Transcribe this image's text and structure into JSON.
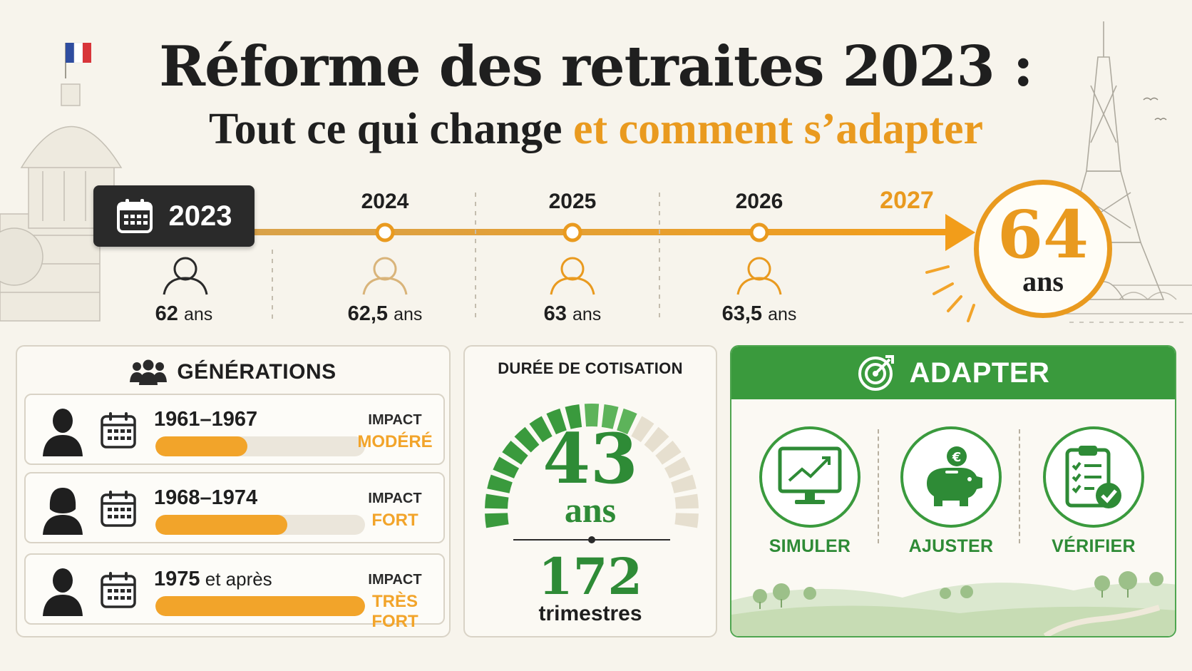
{
  "title": {
    "main": "Réforme des retraites 2023 :",
    "sub_plain": "Tout ce qui change ",
    "sub_accent": "et comment s’adapter"
  },
  "colors": {
    "accent_orange": "#e99a1f",
    "green": "#3a9a3d",
    "dark": "#2a2a2a"
  },
  "timeline": {
    "start_year": "2023",
    "start_age_value": "62",
    "target_year": "2027",
    "target_age": "64",
    "target_unit": "ans",
    "steps": [
      {
        "year": "2024",
        "age": "62,5"
      },
      {
        "year": "2025",
        "age": "63"
      },
      {
        "year": "2026",
        "age": "63,5"
      }
    ],
    "age_unit": "ans"
  },
  "generations": {
    "heading": "GÉNÉRATIONS",
    "rows": [
      {
        "period_main": "1961–1967",
        "period_light": "",
        "impact_label": "IMPACT",
        "impact_value": "MODÉRÉ",
        "impact_level": 0.44,
        "avatar": "man-silhouette-icon"
      },
      {
        "period_main": "1968–1974",
        "period_light": "",
        "impact_label": "IMPACT",
        "impact_value": "FORT",
        "impact_level": 0.63,
        "avatar": "woman-silhouette-icon"
      },
      {
        "period_main": "1975",
        "period_light": " et après",
        "impact_label": "IMPACT",
        "impact_value": "TRÈS FORT",
        "impact_level": 1.0,
        "avatar": "man-silhouette-icon"
      }
    ]
  },
  "duration": {
    "title": "DURÉE DE COTISATION",
    "years": "43",
    "years_unit": "ans",
    "quarters": "172",
    "quarters_unit": "trimestres",
    "gauge_filled_fraction": 0.62
  },
  "adapt": {
    "heading": "ADAPTER",
    "items": [
      {
        "label": "SIMULER",
        "icon": "monitor-chart-icon"
      },
      {
        "label": "AJUSTER",
        "icon": "piggy-bank-euro-icon"
      },
      {
        "label": "VÉRIFIER",
        "icon": "clipboard-check-icon"
      }
    ]
  }
}
